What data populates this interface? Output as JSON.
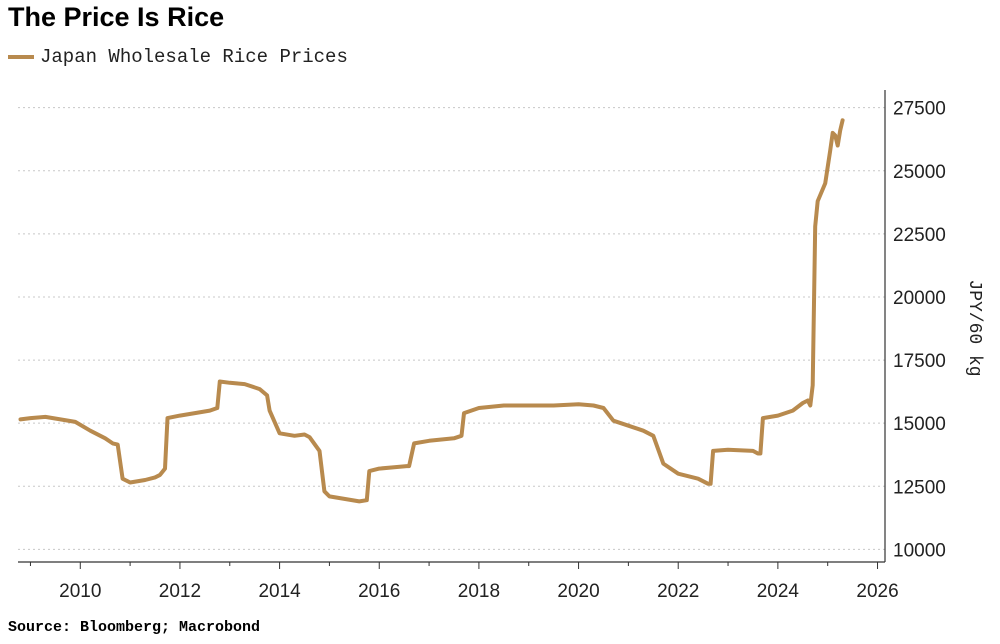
{
  "title": "The Price Is Rice",
  "source": "Source: Bloomberg; Macrobond",
  "chart_data": {
    "type": "line",
    "series": [
      {
        "name": "Japan Wholesale Rice Prices",
        "color": "#b88a4e",
        "x": [
          2008.8,
          2009.0,
          2009.3,
          2009.6,
          2009.9,
          2010.2,
          2010.5,
          2010.65,
          2010.75,
          2010.85,
          2011.0,
          2011.3,
          2011.5,
          2011.6,
          2011.7,
          2011.75,
          2012.0,
          2012.3,
          2012.6,
          2012.75,
          2012.8,
          2013.0,
          2013.3,
          2013.6,
          2013.75,
          2013.8,
          2014.0,
          2014.3,
          2014.5,
          2014.6,
          2014.8,
          2014.9,
          2015.0,
          2015.3,
          2015.6,
          2015.75,
          2015.8,
          2016.0,
          2016.3,
          2016.55,
          2016.6,
          2016.7,
          2017.0,
          2017.5,
          2017.65,
          2017.7,
          2018.0,
          2018.5,
          2019.0,
          2019.5,
          2020.0,
          2020.3,
          2020.5,
          2020.7,
          2021.0,
          2021.3,
          2021.5,
          2021.7,
          2022.0,
          2022.4,
          2022.6,
          2022.65,
          2022.7,
          2023.0,
          2023.5,
          2023.6,
          2023.65,
          2023.7,
          2024.0,
          2024.3,
          2024.5,
          2024.6,
          2024.65,
          2024.7,
          2024.75,
          2024.8,
          2024.95,
          2025.05,
          2025.1,
          2025.15,
          2025.2,
          2025.25,
          2025.3
        ],
        "values": [
          15150,
          15200,
          15250,
          15150,
          15050,
          14700,
          14400,
          14200,
          14150,
          12800,
          12650,
          12750,
          12850,
          12950,
          13200,
          15200,
          15300,
          15400,
          15500,
          15600,
          16650,
          16600,
          16550,
          16350,
          16100,
          15500,
          14600,
          14500,
          14550,
          14450,
          13900,
          12300,
          12100,
          12000,
          11900,
          11950,
          13100,
          13200,
          13250,
          13300,
          13300,
          14200,
          14300,
          14400,
          14500,
          15400,
          15600,
          15700,
          15700,
          15700,
          15750,
          15700,
          15600,
          15100,
          14900,
          14700,
          14500,
          13400,
          13000,
          12800,
          12600,
          12600,
          13900,
          13950,
          13900,
          13800,
          13800,
          15200,
          15300,
          15500,
          15800,
          15900,
          15700,
          16500,
          22800,
          23800,
          24500,
          25800,
          26500,
          26400,
          26000,
          26600,
          27000
        ]
      }
    ],
    "ylabel": "JPY/60 kg",
    "xlim": [
      2008.75,
      2026.15
    ],
    "ylim": [
      9500,
      28200
    ],
    "xticks": [
      2010,
      2012,
      2014,
      2016,
      2018,
      2020,
      2022,
      2024,
      2026
    ],
    "yticks": [
      10000,
      12500,
      15000,
      17500,
      20000,
      22500,
      25000,
      27500
    ],
    "grid": "horizontal-dashed",
    "y_axis_side": "right"
  }
}
